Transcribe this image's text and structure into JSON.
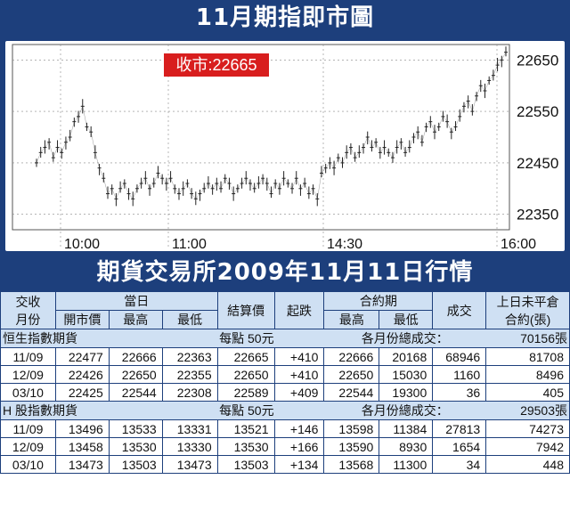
{
  "title": "11月期指即市圖",
  "table_title": "期貨交易所2009年11月11日行情",
  "chart_data": {
    "type": "candlestick-line",
    "close_label": "收市:22665",
    "ylim": [
      22320,
      22680
    ],
    "yticks": [
      22350,
      22450,
      22550,
      22650
    ],
    "xticks": [
      "10:00",
      "11:00",
      "14:30",
      "16:00"
    ],
    "series": [
      22450,
      22470,
      22480,
      22490,
      22460,
      22480,
      22470,
      22490,
      22500,
      22530,
      22540,
      22560,
      22520,
      22510,
      22470,
      22440,
      22420,
      22390,
      22400,
      22380,
      22400,
      22410,
      22390,
      22380,
      22400,
      22410,
      22420,
      22400,
      22410,
      22430,
      22420,
      22410,
      22420,
      22400,
      22390,
      22400,
      22410,
      22390,
      22380,
      22390,
      22400,
      22410,
      22400,
      22410,
      22400,
      22420,
      22410,
      22390,
      22400,
      22410,
      22420,
      22410,
      22400,
      22410,
      22420,
      22410,
      22390,
      22410,
      22400,
      22420,
      22410,
      22400,
      22420,
      22400,
      22410,
      22390,
      22400,
      22380,
      22430,
      22440,
      22450,
      22440,
      22460,
      22450,
      22470,
      22480,
      22460,
      22470,
      22480,
      22500,
      22480,
      22490,
      22470,
      22480,
      22470,
      22460,
      22480,
      22490,
      22470,
      22480,
      22500,
      22510,
      22490,
      22520,
      22530,
      22510,
      22520,
      22540,
      22530,
      22510,
      22520,
      22540,
      22560,
      22570,
      22550,
      22580,
      22600,
      22590,
      22610,
      22620,
      22640,
      22650,
      22665
    ],
    "series_sessions": [
      0,
      48,
      112
    ]
  },
  "columns": {
    "jiaoshou": "交收",
    "yuefen": "月份",
    "dangri": "當日",
    "kaishi": "開市價",
    "zuigao": "最高",
    "zuidi": "最低",
    "jiesuan": "結算價",
    "qidie": "起跌",
    "heyue": "合約期",
    "hy_zuigao": "最高",
    "hy_zuidi": "最低",
    "chengjiao": "成交",
    "weiping": "上日未平倉",
    "weiping2": "合約(張)"
  },
  "sections": [
    {
      "name": "恒生指數期貨",
      "unit": "每點 50元",
      "total_label": "各月份總成交：",
      "total": "70156張",
      "rows": [
        [
          "11/09",
          "22477",
          "22666",
          "22363",
          "22665",
          "+410",
          "22666",
          "20168",
          "68946",
          "81708"
        ],
        [
          "12/09",
          "22426",
          "22650",
          "22355",
          "22650",
          "+410",
          "22650",
          "15030",
          "1160",
          "8496"
        ],
        [
          "03/10",
          "22425",
          "22544",
          "22308",
          "22589",
          "+409",
          "22544",
          "19300",
          "36",
          "405"
        ]
      ]
    },
    {
      "name": "H 股指數期貨",
      "unit": "每點 50元",
      "total_label": "各月份總成交：",
      "total": "29503張",
      "rows": [
        [
          "11/09",
          "13496",
          "13533",
          "13331",
          "13521",
          "+146",
          "13598",
          "11384",
          "27813",
          "74273"
        ],
        [
          "12/09",
          "13458",
          "13530",
          "13330",
          "13530",
          "+166",
          "13590",
          "8930",
          "1654",
          "7942"
        ],
        [
          "03/10",
          "13473",
          "13503",
          "13473",
          "13503",
          "+134",
          "13568",
          "11300",
          "34",
          "448"
        ]
      ]
    }
  ],
  "colors": {
    "navy": "#1d3f7c",
    "label_red": "#d81e1e",
    "header_blue": "#cfe0f3"
  }
}
